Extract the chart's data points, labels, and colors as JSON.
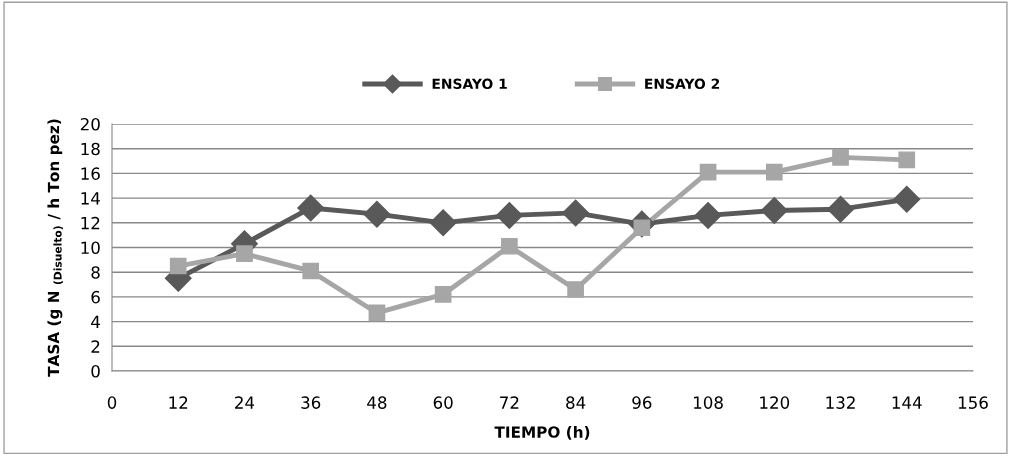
{
  "chart_data": {
    "type": "line",
    "xlabel": "TIEMPO (h)",
    "ylabel": "TASA (g N $_{(Disuelto)}$ / h Ton pez)",
    "x": [
      12,
      24,
      36,
      48,
      60,
      72,
      84,
      96,
      108,
      120,
      132,
      144
    ],
    "series": [
      {
        "name": "ENSAYO 1",
        "color": "#595959",
        "marker": "diamond",
        "values": [
          7.5,
          10.3,
          13.2,
          12.7,
          12.0,
          12.6,
          12.8,
          11.9,
          12.6,
          13.0,
          13.1,
          13.9
        ]
      },
      {
        "name": "ENSAYO 2",
        "color": "#a6a6a6",
        "marker": "square",
        "values": [
          8.5,
          9.5,
          8.1,
          4.7,
          6.2,
          10.1,
          6.6,
          11.6,
          16.1,
          16.1,
          17.3,
          17.1
        ]
      }
    ],
    "xlim": [
      0,
      156
    ],
    "xticks": [
      0,
      12,
      24,
      36,
      48,
      60,
      72,
      84,
      96,
      108,
      120,
      132,
      144,
      156
    ],
    "ylim": [
      0,
      20
    ],
    "yticks": [
      0,
      2,
      4,
      6,
      8,
      10,
      12,
      14,
      16,
      18,
      20
    ],
    "grid": "y",
    "legend": "top"
  }
}
